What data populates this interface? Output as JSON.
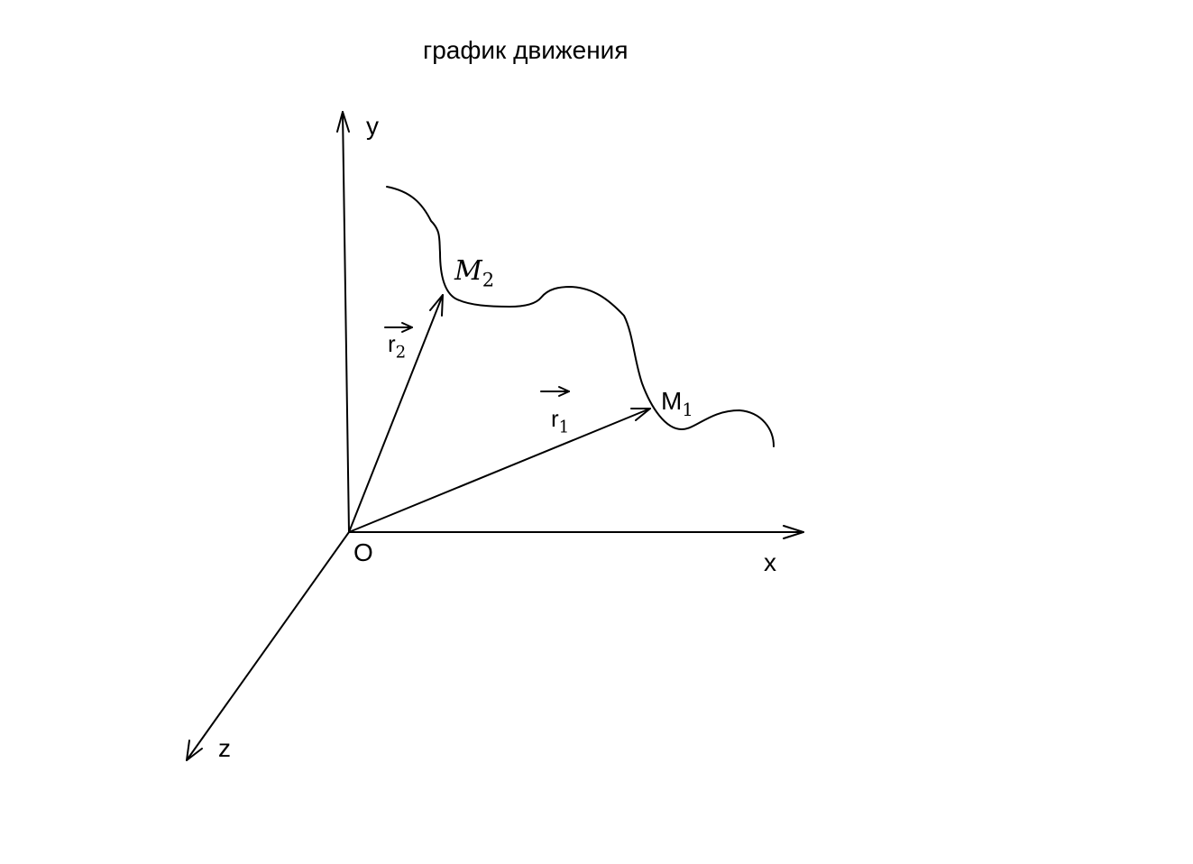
{
  "title": "график движения",
  "axes": {
    "x": "x",
    "y": "y",
    "z": "z",
    "origin": "O"
  },
  "vectors": {
    "r1": {
      "base": "r",
      "sub": "1"
    },
    "r2": {
      "base": "r",
      "sub": "2"
    }
  },
  "points": {
    "m1": {
      "base": "M",
      "sub": "1"
    },
    "m2": {
      "base": "M",
      "sub": "2"
    }
  },
  "colors": {
    "line": "#000000",
    "background": "#ffffff"
  }
}
